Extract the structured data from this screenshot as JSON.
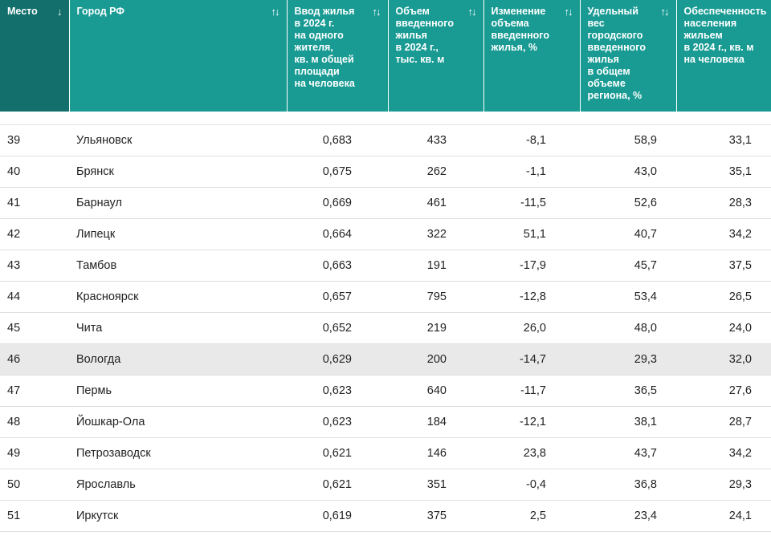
{
  "table": {
    "headers": [
      {
        "label": "Место",
        "sort_icon": "↓",
        "icon_name": "sort-down-icon"
      },
      {
        "label": "Город РФ",
        "sort_icon": "↑↓",
        "icon_name": "sort-both-icon"
      },
      {
        "label": "Ввод жилья\nв 2024 г.\nна одного\nжителя,\nкв. м общей\nплощади\nна человека",
        "sort_icon": "↑↓",
        "icon_name": "sort-both-icon"
      },
      {
        "label": "Объем\nвведенного\nжилья\nв 2024 г.,\nтыс. кв. м",
        "sort_icon": "↑↓",
        "icon_name": "sort-both-icon"
      },
      {
        "label": "Изменение\nобъема\nвведенного\nжилья, %",
        "sort_icon": "↑↓",
        "icon_name": "sort-both-icon"
      },
      {
        "label": "Удельный\nвес\nгородского\nвведенного\nжилья\nв общем\nобъеме\nрегиона, %",
        "sort_icon": "↑↓",
        "icon_name": "sort-both-icon"
      },
      {
        "label": "Обеспеченность\nнаселения\nжильем\nв 2024 г., кв. м\nна человека",
        "sort_icon": "",
        "icon_name": ""
      }
    ],
    "rows": [
      {
        "place": "39",
        "city": "Ульяновск",
        "per_capita": "0,683",
        "volume": "433",
        "change": "-8,1",
        "share": "58,9",
        "provision": "33,1"
      },
      {
        "place": "40",
        "city": "Брянск",
        "per_capita": "0,675",
        "volume": "262",
        "change": "-1,1",
        "share": "43,0",
        "provision": "35,1"
      },
      {
        "place": "41",
        "city": "Барнаул",
        "per_capita": "0,669",
        "volume": "461",
        "change": "-11,5",
        "share": "52,6",
        "provision": "28,3"
      },
      {
        "place": "42",
        "city": "Липецк",
        "per_capita": "0,664",
        "volume": "322",
        "change": "51,1",
        "share": "40,7",
        "provision": "34,2"
      },
      {
        "place": "43",
        "city": "Тамбов",
        "per_capita": "0,663",
        "volume": "191",
        "change": "-17,9",
        "share": "45,7",
        "provision": "37,5"
      },
      {
        "place": "44",
        "city": "Красноярск",
        "per_capita": "0,657",
        "volume": "795",
        "change": "-12,8",
        "share": "53,4",
        "provision": "26,5"
      },
      {
        "place": "45",
        "city": "Чита",
        "per_capita": "0,652",
        "volume": "219",
        "change": "26,0",
        "share": "48,0",
        "provision": "24,0"
      },
      {
        "place": "46",
        "city": "Вологда",
        "per_capita": "0,629",
        "volume": "200",
        "change": "-14,7",
        "share": "29,3",
        "provision": "32,0",
        "highlight": true
      },
      {
        "place": "47",
        "city": "Пермь",
        "per_capita": "0,623",
        "volume": "640",
        "change": "-11,7",
        "share": "36,5",
        "provision": "27,6"
      },
      {
        "place": "48",
        "city": "Йошкар-Ола",
        "per_capita": "0,623",
        "volume": "184",
        "change": "-12,1",
        "share": "38,1",
        "provision": "28,7"
      },
      {
        "place": "49",
        "city": "Петрозаводск",
        "per_capita": "0,621",
        "volume": "146",
        "change": "23,8",
        "share": "43,7",
        "provision": "34,2"
      },
      {
        "place": "50",
        "city": "Ярославль",
        "per_capita": "0,621",
        "volume": "351",
        "change": "-0,4",
        "share": "36,8",
        "provision": "29,3"
      },
      {
        "place": "51",
        "city": "Иркутск",
        "per_capita": "0,619",
        "volume": "375",
        "change": "2,5",
        "share": "23,4",
        "provision": "24,1"
      }
    ]
  },
  "colors": {
    "header_bg": "#199b94",
    "header_sorted_bg": "#126f6b",
    "row_highlight": "#e9e9e9"
  }
}
